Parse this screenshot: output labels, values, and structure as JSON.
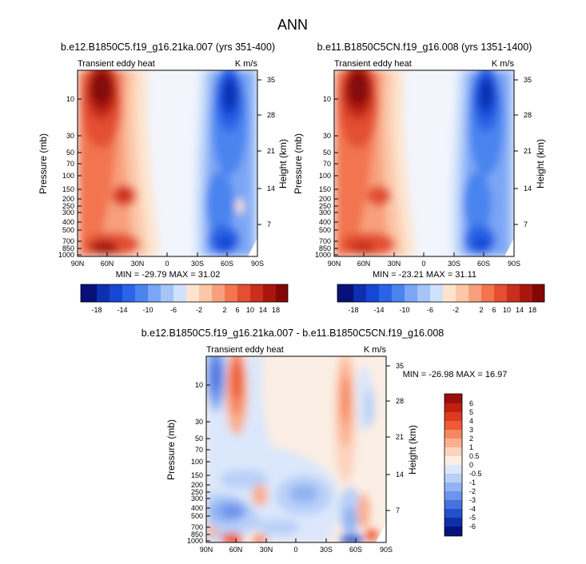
{
  "figure": {
    "main_title": "ANN"
  },
  "chart_data": [
    {
      "type": "heatmap",
      "id": "left",
      "title": "b.e12.B1850C5.f19_g16.21ka.007 (yrs 351-400)",
      "left_label": "Transient eddy heat",
      "right_label": "K m/s",
      "xlabel": "",
      "ylabel": "Pressure (mb)",
      "ylabel_right": "Height (km)",
      "x_ticks": [
        "90N",
        "60N",
        "30N",
        "0",
        "30S",
        "60S",
        "90S"
      ],
      "y_ticks": [
        "10",
        "30",
        "50",
        "70",
        "100",
        "150",
        "200",
        "250",
        "300",
        "400",
        "500",
        "700",
        "850",
        "1000"
      ],
      "y_ticks_right": [
        "35",
        "28",
        "21",
        "14",
        "7"
      ],
      "stats": "MIN = -29.79  MAX = 31.02",
      "colorbar_labels": [
        "-18",
        "-14",
        "-10",
        "-6",
        "-2",
        "2",
        "6",
        "10",
        "14",
        "18"
      ],
      "colors": [
        "#08107a",
        "#0d2fb0",
        "#1646d4",
        "#2a64e6",
        "#4a84ef",
        "#7aa6f5",
        "#a5c4f8",
        "#cfe1fb",
        "#fde4cf",
        "#fcc7a7",
        "#f8a07e",
        "#f27550",
        "#e34f30",
        "#c92f1c",
        "#a8170f",
        "#820808"
      ]
    },
    {
      "type": "heatmap",
      "id": "right",
      "title": "b.e11.B1850C5CN.f19_g16.008 (yrs 1351-1400)",
      "left_label": "Transient eddy heat",
      "right_label": "K m/s",
      "xlabel": "",
      "ylabel": "Pressure (mb)",
      "ylabel_right": "Height (km)",
      "x_ticks": [
        "90N",
        "60N",
        "30N",
        "0",
        "30S",
        "60S",
        "90S"
      ],
      "y_ticks": [
        "10",
        "30",
        "50",
        "70",
        "100",
        "150",
        "200",
        "250",
        "300",
        "400",
        "500",
        "700",
        "850",
        "1000"
      ],
      "y_ticks_right": [
        "35",
        "28",
        "21",
        "14",
        "7"
      ],
      "stats": "MIN = -23.21  MAX = 31.11",
      "colorbar_labels": [
        "-18",
        "-14",
        "-10",
        "-6",
        "-2",
        "2",
        "6",
        "10",
        "14",
        "18"
      ],
      "colors": [
        "#08107a",
        "#0d2fb0",
        "#1646d4",
        "#2a64e6",
        "#4a84ef",
        "#7aa6f5",
        "#a5c4f8",
        "#cfe1fb",
        "#fde4cf",
        "#fcc7a7",
        "#f8a07e",
        "#f27550",
        "#e34f30",
        "#c92f1c",
        "#a8170f",
        "#820808"
      ]
    },
    {
      "type": "heatmap",
      "id": "diff",
      "title": "b.e12.B1850C5.f19_g16.21ka.007 - b.e11.B1850C5CN.f19_g16.008",
      "left_label": "Transient eddy heat",
      "right_label": "K m/s",
      "xlabel": "",
      "ylabel": "Pressure (mb)",
      "ylabel_right": "Height (km)",
      "x_ticks": [
        "90N",
        "60N",
        "30N",
        "0",
        "30S",
        "60S",
        "90S"
      ],
      "y_ticks": [
        "10",
        "30",
        "50",
        "70",
        "100",
        "150",
        "200",
        "250",
        "300",
        "400",
        "500",
        "700",
        "850",
        "1000"
      ],
      "y_ticks_right": [
        "35",
        "28",
        "21",
        "14",
        "7"
      ],
      "stats": "MIN = -26.98  MAX = 16.97",
      "colorbar_labels": [
        "6",
        "5",
        "4",
        "3",
        "2",
        "1",
        "0.5",
        "0",
        "-0.5",
        "-1",
        "-2",
        "-3",
        "-4",
        "-5",
        "-6"
      ],
      "colors": [
        "#9c0d0d",
        "#c0210f",
        "#dd3a20",
        "#ef5b37",
        "#f68761",
        "#fab08f",
        "#fcd3bd",
        "#fdeee3",
        "#dbe7fb",
        "#b9d0f8",
        "#92b3f3",
        "#6d93ec",
        "#4672e0",
        "#2350cc",
        "#0d30a8",
        "#07127e"
      ]
    }
  ]
}
